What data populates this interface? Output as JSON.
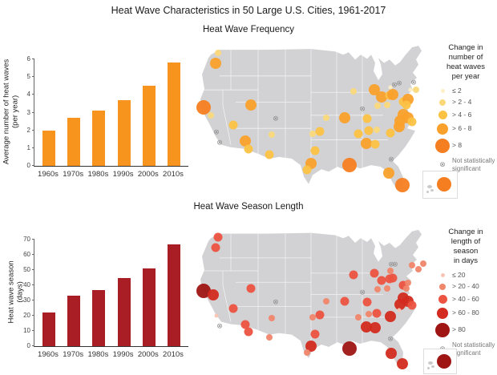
{
  "title": "Heat Wave Characteristics in 50 Large U.S. Cities, 1961-2017",
  "basemap_color": "#D2D2D4",
  "ns_color": "#8d8d8d",
  "chart_data": [
    {
      "type": "bar",
      "title": "Heat Wave Frequency",
      "categories": [
        "1960s",
        "1970s",
        "1980s",
        "1990s",
        "2000s",
        "2010s"
      ],
      "values": [
        2.0,
        2.7,
        3.1,
        3.7,
        4.5,
        5.8
      ],
      "xlabel": "",
      "ylabel": "Average number of heat waves\n(per year)",
      "ylim": [
        0,
        6
      ],
      "yticks": [
        0,
        1,
        2,
        3,
        4,
        5,
        6
      ],
      "bar_color": "#F7941E"
    },
    {
      "type": "bar",
      "title": "Heat Wave Season Length",
      "categories": [
        "1960s",
        "1970s",
        "1980s",
        "1990s",
        "2000s",
        "2010s"
      ],
      "values": [
        22,
        33,
        37,
        45,
        51,
        67
      ],
      "xlabel": "",
      "ylabel": "Heat wave season\n(days)",
      "ylim": [
        0,
        70
      ],
      "yticks": [
        0,
        10,
        20,
        30,
        40,
        50,
        60,
        70
      ],
      "bar_color": "#A81E24"
    },
    {
      "type": "scatter",
      "title": "Heat Wave Frequency map",
      "legend_title": "Change in\nnumber of\nheat waves\nper year",
      "ns_label": "Not statistically significant",
      "legend_position": "right",
      "inset_class": 5,
      "classes": [
        {
          "label": "≤ 2",
          "size": 5,
          "color": "#FDEFC3"
        },
        {
          "label": "> 2 - 4",
          "size": 8,
          "color": "#FBD97B"
        },
        {
          "label": "> 4 - 6",
          "size": 11,
          "color": "#FBC244"
        },
        {
          "label": "> 6 - 8",
          "size": 14,
          "color": "#F9A12B"
        },
        {
          "label": "> 8",
          "size": 18,
          "color": "#F57E20"
        }
      ],
      "points": [
        [
          11.8,
          6.1,
          2
        ],
        [
          10.9,
          12.8,
          4
        ],
        [
          5.9,
          40.8,
          5
        ],
        [
          8.9,
          45.9,
          2
        ],
        [
          18.1,
          52,
          3
        ],
        [
          25.3,
          39.3,
          4
        ],
        [
          23,
          62.2,
          4
        ],
        [
          24.3,
          67.3,
          3
        ],
        [
          33.9,
          58.2,
          2
        ],
        [
          32.9,
          70.9,
          3
        ],
        [
          50.7,
          57.7,
          2
        ],
        [
          53.6,
          56.1,
          3
        ],
        [
          51.6,
          68.4,
          3
        ],
        [
          50,
          76.5,
          4
        ],
        [
          48.4,
          80.6,
          3
        ],
        [
          56.3,
          47.4,
          2
        ],
        [
          67.4,
          30.6,
          2
        ],
        [
          63.8,
          47.4,
          4
        ],
        [
          69.4,
          57.7,
          3
        ],
        [
          65.8,
          77.6,
          5
        ],
        [
          76,
          29.6,
          4
        ],
        [
          78.9,
          34.2,
          4
        ],
        [
          82.2,
          33.2,
          3
        ],
        [
          73,
          48,
          3
        ],
        [
          77.3,
          39.8,
          2
        ],
        [
          83.6,
          32.7,
          4
        ],
        [
          81.3,
          39.3,
          2
        ],
        [
          87.8,
          37.2,
          3
        ],
        [
          82.6,
          28.1,
          1
        ],
        [
          90.8,
          29.6,
          1
        ],
        [
          93.1,
          29.6,
          2
        ],
        [
          89.8,
          35.7,
          4
        ],
        [
          89.1,
          39.3,
          3
        ],
        [
          87.8,
          45.4,
          4
        ],
        [
          89.8,
          47.4,
          4
        ],
        [
          86.5,
          49.5,
          4
        ],
        [
          91.4,
          50,
          3
        ],
        [
          86.2,
          53.1,
          4
        ],
        [
          82.6,
          57.1,
          3
        ],
        [
          73.7,
          55.6,
          3
        ],
        [
          77,
          55.1,
          2
        ],
        [
          72.7,
          63.8,
          4
        ],
        [
          76.3,
          64.3,
          3
        ],
        [
          81.9,
          82.7,
          4
        ],
        [
          87.5,
          90.3,
          5
        ],
        [
          11.2,
          56.6,
          0
        ],
        [
          12.5,
          63.3,
          0
        ],
        [
          35.5,
          48,
          0
        ],
        [
          71.1,
          41.8,
          0
        ],
        [
          84.2,
          26.5,
          0
        ],
        [
          86.2,
          25.5,
          0
        ],
        [
          92.1,
          25,
          0
        ],
        [
          82.9,
          74,
          0
        ]
      ]
    },
    {
      "type": "scatter",
      "title": "Heat Wave Season Length map",
      "legend_title": "Change in\nlength of\nseason\nin days",
      "ns_label": "Not statistically significant",
      "legend_position": "right",
      "inset_class": 5,
      "classes": [
        {
          "label": "≤ 20",
          "size": 5,
          "color": "#F8C5B1"
        },
        {
          "label": "> 20 - 40",
          "size": 8,
          "color": "#F0866B"
        },
        {
          "label": "> 40 - 60",
          "size": 11,
          "color": "#EC5340"
        },
        {
          "label": "> 60 - 80",
          "size": 14,
          "color": "#D32B1F"
        },
        {
          "label": "> 80",
          "size": 18,
          "color": "#9E1513"
        }
      ],
      "points": [
        [
          11.8,
          6.5,
          3
        ],
        [
          10.9,
          13.6,
          3
        ],
        [
          5.9,
          43.5,
          5
        ],
        [
          9.9,
          46.2,
          4
        ],
        [
          18.1,
          55.4,
          3
        ],
        [
          25.3,
          41.9,
          3
        ],
        [
          23,
          66.3,
          3
        ],
        [
          24.3,
          71.7,
          3
        ],
        [
          33.9,
          62,
          2
        ],
        [
          32.9,
          75.5,
          2
        ],
        [
          50.7,
          61.5,
          2
        ],
        [
          53.6,
          59.8,
          3
        ],
        [
          51.6,
          72.9,
          3
        ],
        [
          50,
          81.5,
          4
        ],
        [
          48.4,
          85.9,
          2
        ],
        [
          56.3,
          50.5,
          2
        ],
        [
          67.4,
          32.6,
          3
        ],
        [
          63.8,
          50.5,
          3
        ],
        [
          69.4,
          61.5,
          2
        ],
        [
          65.8,
          82.7,
          5
        ],
        [
          76,
          31.5,
          3
        ],
        [
          78.9,
          36.4,
          3
        ],
        [
          82.2,
          35.4,
          3
        ],
        [
          73,
          51.1,
          3
        ],
        [
          77.3,
          42.4,
          2
        ],
        [
          83.6,
          34.8,
          3
        ],
        [
          81.3,
          41.9,
          2
        ],
        [
          87.8,
          39.6,
          3
        ],
        [
          82.6,
          29.9,
          2
        ],
        [
          91.5,
          26,
          2
        ],
        [
          94,
          28.5,
          2
        ],
        [
          96,
          24.5,
          2
        ],
        [
          89.8,
          38,
          2
        ],
        [
          89.1,
          41.9,
          2
        ],
        [
          87.8,
          48.4,
          4
        ],
        [
          89.8,
          50.5,
          4
        ],
        [
          86.5,
          52.7,
          4
        ],
        [
          91.4,
          53.3,
          3
        ],
        [
          86.2,
          56.6,
          1
        ],
        [
          82.6,
          60.9,
          4
        ],
        [
          73.7,
          59.2,
          2
        ],
        [
          77,
          58.7,
          3
        ],
        [
          72.7,
          68,
          4
        ],
        [
          76.3,
          68.5,
          4
        ],
        [
          82.9,
          86.4,
          4
        ],
        [
          87.5,
          93.5,
          4
        ],
        [
          11.2,
          60.3,
          1
        ],
        [
          12.5,
          67.4,
          0
        ],
        [
          35.5,
          51.1,
          0
        ],
        [
          71.1,
          44.5,
          0
        ],
        [
          82.9,
          25.5,
          0
        ],
        [
          84.5,
          25,
          0
        ],
        [
          82.6,
          76.1,
          0
        ]
      ]
    }
  ]
}
